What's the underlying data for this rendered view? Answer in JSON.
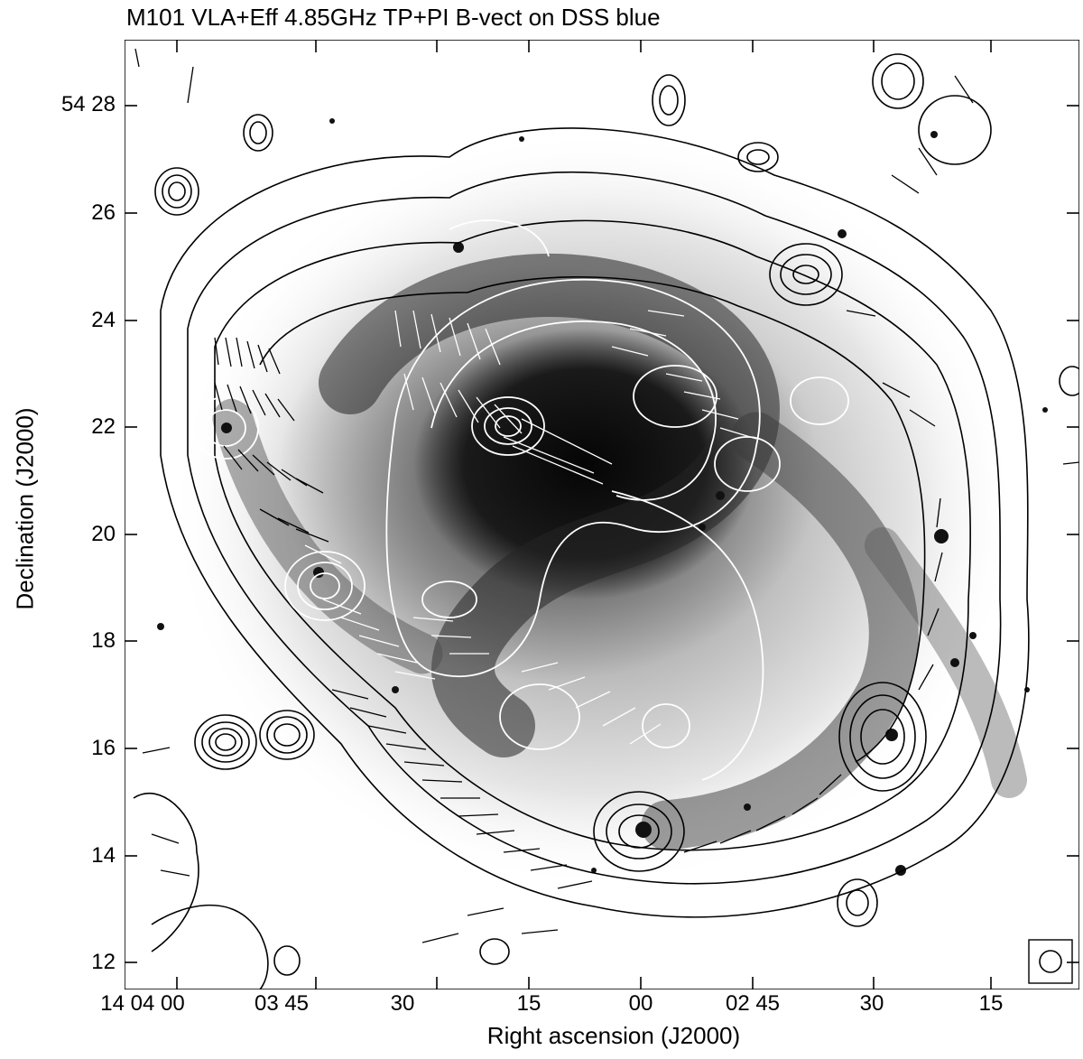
{
  "figure": {
    "title": "M101 VLA+Eff 4.85GHz TP+PI B-vect on DSS blue",
    "xlabel": "Right ascension (J2000)",
    "ylabel": "Declination (J2000)",
    "ytick_labels": [
      "54 28",
      "26",
      "24",
      "22",
      "20",
      "18",
      "16",
      "14",
      "12"
    ],
    "xtick_labels": [
      "14 04 00",
      "03 45",
      "30",
      "15",
      "00",
      "02 45",
      "30",
      "15"
    ]
  },
  "colors": {
    "background": "#ffffff",
    "contours_outer": "#000000",
    "contours_inner": "#ffffff"
  }
}
